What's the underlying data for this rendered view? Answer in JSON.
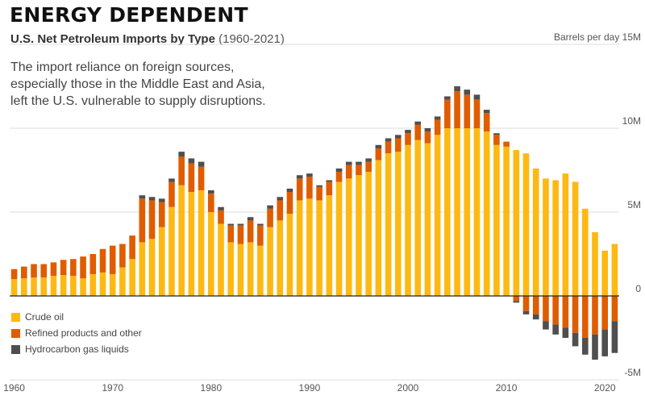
{
  "header": {
    "title": "ENERGY DEPENDENT",
    "subtitle_main": "U.S. Net Petroleum Imports by Type",
    "subtitle_range": "(1960-2021)",
    "description_lines": [
      "The import reliance on foreign sources,",
      "especially those in the Middle East and Asia,",
      "left the U.S. vulnerable to supply disruptions."
    ]
  },
  "colors": {
    "crude": "#FDB913",
    "refined": "#E05C00",
    "hgl": "#4F4F4F",
    "grid": "#dddddd",
    "zero_line": "#222222"
  },
  "chart_data": {
    "type": "bar",
    "stacked": true,
    "unit_label": "Barrels per day",
    "x": [
      1960,
      1961,
      1962,
      1963,
      1964,
      1965,
      1966,
      1967,
      1968,
      1969,
      1970,
      1971,
      1972,
      1973,
      1974,
      1975,
      1976,
      1977,
      1978,
      1979,
      1980,
      1981,
      1982,
      1983,
      1984,
      1985,
      1986,
      1987,
      1988,
      1989,
      1990,
      1991,
      1992,
      1993,
      1994,
      1995,
      1996,
      1997,
      1998,
      1999,
      2000,
      2001,
      2002,
      2003,
      2004,
      2005,
      2006,
      2007,
      2008,
      2009,
      2010,
      2011,
      2012,
      2013,
      2014,
      2015,
      2016,
      2017,
      2018,
      2019,
      2020,
      2021
    ],
    "xticks": [
      1960,
      1970,
      1980,
      1990,
      2000,
      2010,
      2020
    ],
    "ylim": [
      -5,
      15
    ],
    "yticks": [
      {
        "value": 15,
        "label": "Barrels per day 15M"
      },
      {
        "value": 10,
        "label": "10M"
      },
      {
        "value": 5,
        "label": "5M"
      },
      {
        "value": 0,
        "label": "0"
      },
      {
        "value": -5,
        "label": "-5M"
      }
    ],
    "grid": true,
    "legend_position": "bottom-left",
    "series": [
      {
        "name": "Crude oil",
        "color": "#FDB913",
        "values": [
          1.0,
          1.05,
          1.1,
          1.1,
          1.2,
          1.25,
          1.2,
          1.05,
          1.3,
          1.4,
          1.3,
          1.7,
          2.2,
          3.2,
          3.4,
          4.1,
          5.3,
          6.6,
          6.2,
          6.3,
          5.0,
          4.3,
          3.2,
          3.1,
          3.2,
          3.0,
          4.1,
          4.5,
          4.9,
          5.7,
          5.8,
          5.7,
          6.0,
          6.8,
          7.0,
          7.2,
          7.4,
          8.1,
          8.5,
          8.6,
          9.0,
          9.3,
          9.1,
          9.6,
          10.0,
          10.0,
          10.0,
          10.0,
          9.8,
          9.0,
          8.9,
          8.7,
          8.5,
          7.6,
          7.0,
          6.9,
          7.3,
          6.8,
          5.2,
          3.8,
          2.7,
          3.1
        ]
      },
      {
        "name": "Refined products and other",
        "color": "#E05C00",
        "values": [
          0.6,
          0.7,
          0.8,
          0.8,
          0.8,
          0.9,
          1.0,
          1.3,
          1.2,
          1.4,
          1.7,
          1.4,
          1.4,
          2.6,
          2.3,
          1.5,
          1.5,
          1.7,
          1.7,
          1.4,
          1.1,
          0.8,
          1.0,
          1.1,
          1.3,
          1.2,
          1.1,
          1.2,
          1.3,
          1.3,
          1.3,
          0.8,
          0.8,
          0.6,
          0.8,
          0.6,
          0.6,
          0.7,
          0.7,
          0.8,
          0.7,
          0.9,
          0.7,
          0.9,
          1.7,
          2.2,
          2.0,
          1.7,
          1.1,
          0.6,
          0.3,
          -0.3,
          -0.9,
          -1.1,
          -1.5,
          -1.7,
          -1.9,
          -2.2,
          -2.5,
          -2.3,
          -2.0,
          -1.5
        ]
      },
      {
        "name": "Hydrocarbon gas liquids",
        "color": "#4F4F4F",
        "values": [
          0.0,
          0.0,
          0.0,
          0.0,
          0.0,
          0.0,
          0.0,
          0.0,
          0.0,
          0.0,
          0.0,
          0.0,
          0.0,
          0.2,
          0.2,
          0.2,
          0.2,
          0.3,
          0.3,
          0.3,
          0.2,
          0.2,
          0.1,
          0.1,
          0.2,
          0.1,
          0.2,
          0.2,
          0.2,
          0.2,
          0.2,
          0.1,
          0.1,
          0.2,
          0.2,
          0.2,
          0.2,
          0.2,
          0.2,
          0.2,
          0.2,
          0.2,
          0.2,
          0.2,
          0.2,
          0.3,
          0.3,
          0.3,
          0.2,
          0.1,
          0.0,
          -0.1,
          -0.2,
          -0.3,
          -0.5,
          -0.6,
          -0.6,
          -0.8,
          -1.0,
          -1.5,
          -1.6,
          -1.9
        ]
      }
    ]
  }
}
